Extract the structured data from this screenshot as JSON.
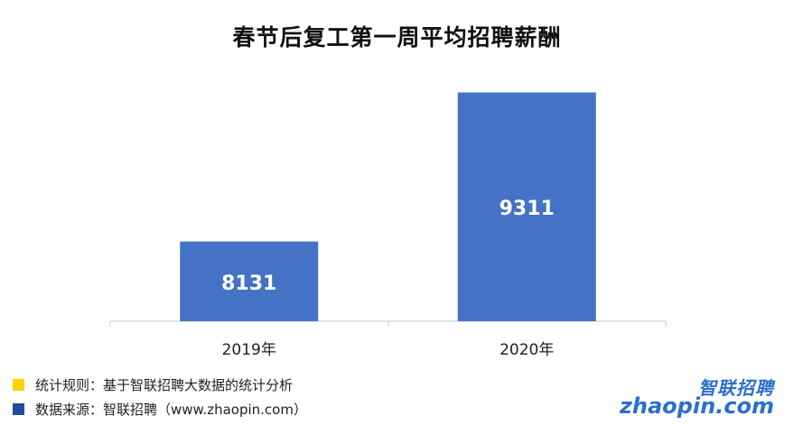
{
  "chart_data": {
    "type": "bar",
    "title": "春节后复工第一周平均招聘薪酬",
    "categories": [
      "2019年",
      "2020年"
    ],
    "values": [
      8131,
      9311
    ],
    "ylim": [
      7500,
      9400
    ],
    "grid": false,
    "bar_color": "#4472c4",
    "label_color": "#ffffff"
  },
  "footer": {
    "rule_text": "统计规则：基于智联招聘大数据的统计分析",
    "rule_color": "#ffd200",
    "source_text": "数据来源：智联招聘（www.zhaopin.com）",
    "source_color": "#1f4e9c"
  },
  "logo": {
    "cn": "智联招聘",
    "en": "zhaopin.com"
  }
}
